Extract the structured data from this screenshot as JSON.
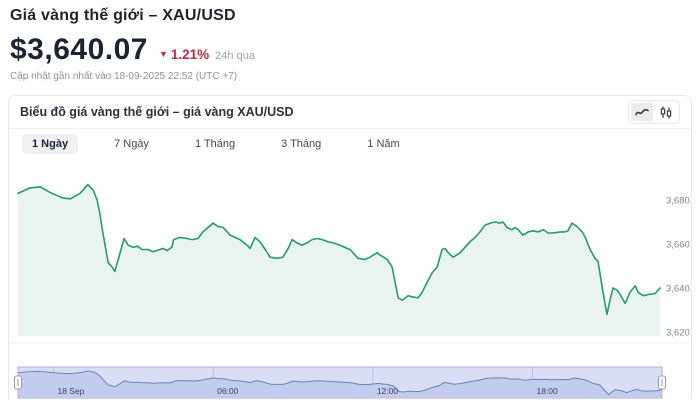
{
  "page": {
    "title": "Giá vàng thế giới – XAU/USD",
    "price": "$3,640.07",
    "change": {
      "direction": "down",
      "percent": "1.21%",
      "period": "24h qua",
      "arrow": "▼"
    },
    "updated_text": "Cập nhật gần nhất vào 18-09-2025 22:52 (UTC +7)"
  },
  "chart_panel": {
    "header": "Biểu đồ giá vàng thế giới – giá vàng XAU/USD",
    "view_toggles": [
      {
        "name": "line-chart",
        "active": true
      },
      {
        "name": "candlestick-chart",
        "active": false
      }
    ],
    "range_tabs": [
      {
        "label": "1 Ngày",
        "active": true
      },
      {
        "label": "7 Ngày",
        "active": false
      },
      {
        "label": "1 Tháng",
        "active": false
      },
      {
        "label": "3 Tháng",
        "active": false
      },
      {
        "label": "1 Năm",
        "active": false
      }
    ]
  },
  "colors": {
    "dark_text": "#1c2433",
    "red_change": "#c52840",
    "accent_green": "#259b6e",
    "green_fill": "#e9f4ee",
    "ytick_label": "#7d8696",
    "axis_hairline": "#eef1f4",
    "nav_bg": "#d9def5",
    "nav_fill": "#c3cbee",
    "nav_line": "#6d83b4",
    "nav_border": "#a9b2dc",
    "nav_grid": "#b6bee6",
    "nav_label": "#3d4759",
    "handle_fill": "#ffffff",
    "handle_border": "#959eb5"
  },
  "chart_data": {
    "type": "area",
    "title": "Biểu đồ giá vàng thế giới – giá vàng XAU/USD",
    "legend": "none",
    "grid": "none",
    "series": [
      {
        "name": "XAU/USD",
        "points": [
          [
            0,
            3683
          ],
          [
            27,
            3685.5
          ],
          [
            50,
            3686
          ],
          [
            72,
            3683.5
          ],
          [
            100,
            3681
          ],
          [
            118,
            3680.5
          ],
          [
            140,
            3683
          ],
          [
            158,
            3687
          ],
          [
            170,
            3684.5
          ],
          [
            179,
            3680
          ],
          [
            185,
            3674
          ],
          [
            192,
            3665
          ],
          [
            204,
            3651.5
          ],
          [
            213,
            3649.5
          ],
          [
            219,
            3647.5
          ],
          [
            240,
            3662.5
          ],
          [
            249,
            3659.5
          ],
          [
            260,
            3658.5
          ],
          [
            271,
            3659
          ],
          [
            280,
            3657.5
          ],
          [
            294,
            3657.5
          ],
          [
            305,
            3656.5
          ],
          [
            314,
            3657
          ],
          [
            328,
            3658
          ],
          [
            337,
            3657
          ],
          [
            348,
            3658.5
          ],
          [
            352,
            3662
          ],
          [
            366,
            3663
          ],
          [
            382,
            3662.5
          ],
          [
            394,
            3662
          ],
          [
            407,
            3662.5
          ],
          [
            418,
            3665.5
          ],
          [
            430,
            3667.5
          ],
          [
            441,
            3669.5
          ],
          [
            452,
            3668
          ],
          [
            464,
            3667.5
          ],
          [
            480,
            3664
          ],
          [
            491,
            3663
          ],
          [
            502,
            3662
          ],
          [
            518,
            3659.5
          ],
          [
            525,
            3658
          ],
          [
            536,
            3663
          ],
          [
            547,
            3661
          ],
          [
            559,
            3657.5
          ],
          [
            570,
            3654
          ],
          [
            586,
            3653.5
          ],
          [
            599,
            3654
          ],
          [
            611,
            3658
          ],
          [
            620,
            3662
          ],
          [
            631,
            3660.5
          ],
          [
            642,
            3659.5
          ],
          [
            654,
            3660.5
          ],
          [
            665,
            3662
          ],
          [
            676,
            3662.5
          ],
          [
            688,
            3662
          ],
          [
            701,
            3661
          ],
          [
            713,
            3660.5
          ],
          [
            728,
            3659.5
          ],
          [
            744,
            3658
          ],
          [
            751,
            3657.5
          ],
          [
            769,
            3653.5
          ],
          [
            785,
            3653
          ],
          [
            796,
            3654
          ],
          [
            812,
            3656
          ],
          [
            819,
            3655
          ],
          [
            835,
            3653
          ],
          [
            846,
            3649.5
          ],
          [
            860,
            3635.5
          ],
          [
            869,
            3634.5
          ],
          [
            882,
            3636.5
          ],
          [
            891,
            3636
          ],
          [
            905,
            3635.5
          ],
          [
            914,
            3638
          ],
          [
            925,
            3642.5
          ],
          [
            937,
            3647
          ],
          [
            948,
            3649.5
          ],
          [
            959,
            3657.5
          ],
          [
            966,
            3658
          ],
          [
            973,
            3656
          ],
          [
            984,
            3654
          ],
          [
            1000,
            3656
          ],
          [
            1011,
            3658.5
          ],
          [
            1022,
            3661
          ],
          [
            1034,
            3663
          ],
          [
            1045,
            3665.5
          ],
          [
            1056,
            3668.5
          ],
          [
            1068,
            3669.5
          ],
          [
            1079,
            3670
          ],
          [
            1090,
            3669.5
          ],
          [
            1097,
            3670
          ],
          [
            1106,
            3667.5
          ],
          [
            1117,
            3666.5
          ],
          [
            1124,
            3667.5
          ],
          [
            1131,
            3666.5
          ],
          [
            1142,
            3664
          ],
          [
            1154,
            3665.5
          ],
          [
            1165,
            3666
          ],
          [
            1176,
            3665.5
          ],
          [
            1188,
            3666.5
          ],
          [
            1199,
            3665
          ],
          [
            1210,
            3665
          ],
          [
            1226,
            3665.5
          ],
          [
            1237,
            3665.5
          ],
          [
            1244,
            3666
          ],
          [
            1253,
            3669.5
          ],
          [
            1264,
            3668
          ],
          [
            1276,
            3665.5
          ],
          [
            1283,
            3663
          ],
          [
            1294,
            3657.5
          ],
          [
            1305,
            3653.5
          ],
          [
            1312,
            3652
          ],
          [
            1321,
            3640.5
          ],
          [
            1332,
            3628
          ],
          [
            1339,
            3634.5
          ],
          [
            1346,
            3640
          ],
          [
            1355,
            3639
          ],
          [
            1362,
            3637
          ],
          [
            1373,
            3633
          ],
          [
            1384,
            3638
          ],
          [
            1396,
            3641
          ],
          [
            1403,
            3638
          ],
          [
            1414,
            3636.5
          ],
          [
            1425,
            3637
          ],
          [
            1441,
            3637.5
          ],
          [
            1452,
            3640
          ]
        ]
      }
    ],
    "x_axis": {
      "unit": "minutes-from-range-start",
      "range_minutes": 1452,
      "ticks": [
        {
          "t": 80,
          "label": "18 Sep"
        },
        {
          "t": 440,
          "label": "06:00"
        },
        {
          "t": 800,
          "label": "12:00"
        },
        {
          "t": 1160,
          "label": "18:00"
        }
      ]
    },
    "y_axis": {
      "min": 3618,
      "max": 3696,
      "ticks": [
        {
          "value": 3680,
          "label": "3,680"
        },
        {
          "value": 3660,
          "label": "3,660"
        },
        {
          "value": 3640,
          "label": "3,640"
        },
        {
          "value": 3620,
          "label": "3,620"
        }
      ]
    }
  }
}
